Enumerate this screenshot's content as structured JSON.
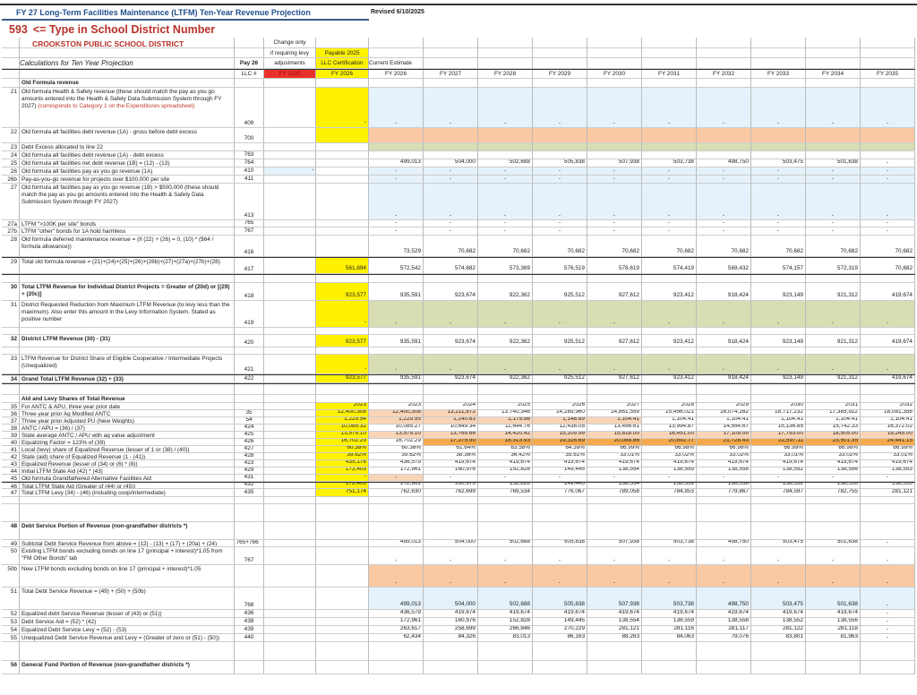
{
  "header": {
    "title": "FY 27 Long-Term Facilities Maintenance (LTFM) Ten-Year Revenue Projection",
    "revised": "Revised 6/10/2025",
    "district_number": "593",
    "district_prompt": "<= Type in School District Number",
    "district_name": "CROOKSTON PUBLIC SCHOOL DISTRICT",
    "calc_title": "Calculations for Ten Year Projection",
    "change_only": [
      "Change only",
      "if requiring levy",
      "adjustments"
    ],
    "payable": [
      "Payable 2025",
      "LLC Certification"
    ],
    "current_estimate": "Current Estimate",
    "pay26": "Pay 26",
    "llc_header": "LLC #",
    "fy2025": "FY 2025",
    "fy2026_llc": "FY 2026",
    "years": [
      "FY 2026",
      "FY 2027",
      "FY 2028",
      "FY 2029",
      "FY 2030",
      "FY 2031",
      "FY 2032",
      "FY 2033",
      "FY 2034",
      "FY 2035"
    ]
  },
  "colors": {
    "title": "#1f4e8c",
    "district": "#b8322a",
    "llc_highlight": "#fff200",
    "fy2025_header": "#e8312a",
    "input_blue": "#e5f2fb",
    "orange": "#f9c9a3",
    "green": "#d9ddb4"
  },
  "rows": [
    {
      "label": "Old Formula revenue",
      "section": true
    },
    {
      "num": "21",
      "label": "Old formula Health & Safety revenue (these should match the pay as you go amounts entered into the Health & Safety Data Submission System through FY 2027)",
      "note": "(corresponds to Category 1 on the Expenditures spreadsheet)",
      "llc": "409",
      "fy2026": "-",
      "values": [
        "-",
        "-",
        "-",
        "-",
        "-",
        "-",
        "-",
        "-",
        "-",
        "-"
      ]
    },
    {
      "num": "22",
      "label": "Old formula alt facilities debt revenue (1A) - gross before debt excess",
      "llc": "700",
      "values": [
        "",
        "",
        "",
        "",
        "",
        "",
        "",
        "",
        "",
        ""
      ]
    },
    {
      "num": "23",
      "label": "Debt Excess allocated to line 22",
      "values": [
        "",
        "",
        "",
        "",
        "",
        "",
        "",
        "",
        "",
        ""
      ]
    },
    {
      "num": "24",
      "label": "Old formula alt facilities debt revenue (1A) -  debt excess",
      "llc": "763",
      "values": [
        "",
        "",
        "",
        "",
        "",
        "",
        "",
        "",
        "",
        ""
      ]
    },
    {
      "num": "25",
      "label": "Old formula alt facilities net debt revenue (1B) = (12) - (13)",
      "llc": "764",
      "values": [
        "499,013",
        "504,000",
        "502,688",
        "505,838",
        "507,938",
        "503,738",
        "498,750",
        "503,475",
        "501,638",
        "-"
      ]
    },
    {
      "num": "26",
      "label": "Old formula alt facilities pay as you go revenue (1A)",
      "llc": "410",
      "fy2025": "-",
      "values": [
        "-",
        "-",
        "-",
        "-",
        "-",
        "-",
        "-",
        "-",
        "-",
        "-"
      ]
    },
    {
      "num": "26b",
      "label": "Pay-as-you-go revenue for projects over $100,000 per site",
      "llc": "411",
      "values": [
        "-",
        "-",
        "-",
        "-",
        "-",
        "-",
        "-",
        "-",
        "-",
        "-"
      ]
    },
    {
      "num": "27",
      "label": "Old formula alt facilities pay as you go revenue (1B) > $500,000 (these should match the pay as you go amounts entered into the Health & Safety Data Submission System through FY 2027)",
      "llc": "413",
      "values": [
        "-",
        "-",
        "-",
        "-",
        "-",
        "-",
        "-",
        "-",
        "-",
        "-"
      ]
    },
    {
      "num": "27a",
      "label": "LTFM \">100K per site\" bonds",
      "llc": "765",
      "values": [
        "-",
        "-",
        "-",
        "-",
        "-",
        "-",
        "-",
        "-",
        "-",
        "-"
      ]
    },
    {
      "num": "27b",
      "label": "LTFM \"other\" bonds for 1A hold harmless",
      "llc": "767",
      "values": [
        "-",
        "-",
        "-",
        "-",
        "-",
        "-",
        "-",
        "-",
        "-",
        "-"
      ]
    },
    {
      "num": "28",
      "label": "Old formula deferred maintenance revenue = (if (22) + (26) = 0, (10) * ($64 / formula allowance))",
      "llc": "416",
      "values": [
        "73,529",
        "70,682",
        "70,682",
        "70,682",
        "70,682",
        "70,682",
        "70,682",
        "70,682",
        "70,682",
        "70,682"
      ]
    },
    {
      "num": "29",
      "label": "Total old formula revenue = (21)+(24)+(25)+(26)+(26b)+(27)+(27a)+(27b)+(28)",
      "llc": "417",
      "fy2026": "561,694",
      "values": [
        "572,542",
        "574,682",
        "573,369",
        "576,519",
        "578,619",
        "574,419",
        "569,432",
        "574,157",
        "572,319",
        "70,682"
      ]
    },
    {
      "blank": true
    },
    {
      "num": "30",
      "label": "Total LTFM Revenue for Individual District Projects = Greater of (20d) or [(29) + (20c)]",
      "bold": true,
      "llc": "418",
      "fy2026": "923,577",
      "values": [
        "935,591",
        "923,674",
        "922,362",
        "925,512",
        "927,612",
        "923,412",
        "918,424",
        "923,149",
        "921,312",
        "419,674"
      ]
    },
    {
      "num": "31",
      "label": "District Requested Reduction from Maximum LTFM Revenue (to levy less than the maximum).  Also enter this amount in the Levy Information System.  Stated as positive number",
      "llc": "419",
      "fy2026": "-",
      "values": [
        "-",
        "-",
        "-",
        "-",
        "-",
        "-",
        "-",
        "-",
        "-",
        "-"
      ]
    },
    {
      "blank": true
    },
    {
      "num": "32",
      "label": "District LTFM Revenue  (30) - (31)",
      "bold": true,
      "llc": "420",
      "fy2026": "923,577",
      "values": [
        "935,591",
        "923,674",
        "922,362",
        "925,512",
        "927,612",
        "923,412",
        "918,424",
        "923,149",
        "921,312",
        "419,674"
      ]
    },
    {
      "blank": true
    },
    {
      "num": "33",
      "label": "LTFM Revenue for District Share of Eligible Cooperative / Intermediate Projects (Unequalized)",
      "llc": "421",
      "fy2026": "-",
      "values": [
        "-",
        "-",
        "-",
        "-",
        "-",
        "-",
        "-",
        "-",
        "-",
        "-"
      ]
    },
    {
      "num": "34",
      "label": "Grand Total LTFM Revenue (32) + (33)",
      "bold": true,
      "llc": "422",
      "fy2026": "923,577",
      "values": [
        "935,591",
        "923,674",
        "922,362",
        "925,512",
        "927,612",
        "923,412",
        "918,424",
        "923,149",
        "921,312",
        "419,674"
      ]
    },
    {
      "blank": true
    },
    {
      "label": "Aid and Levy Shares of Total Revenue",
      "section": true
    },
    {
      "num": "35",
      "label": "For ANTC & APU, three year prior date",
      "fy2026": "2023",
      "values": [
        "2023",
        "2024",
        "2025",
        "2026",
        "2027",
        "2028",
        "2029",
        "2030",
        "2031",
        "2032"
      ]
    },
    {
      "num": "36",
      "label": "Three year prior Ag Modified ANTC",
      "llc": "35",
      "fy2026": "12,400,308",
      "values": [
        "12,400,308",
        "13,211,872",
        "13,740,346",
        "14,289,960",
        "14,861,559",
        "15,456,021",
        "16,074,262",
        "16,717,232",
        "17,385,922",
        "18,081,358"
      ]
    },
    {
      "num": "37",
      "label": "Three year prior Adjusted PU (New Weights)",
      "llc": "54",
      "fy2026": "1,229.54",
      "values": [
        "1,229.55",
        "1,240.63",
        "1,179.96",
        "1,148.89",
        "1,104.41",
        "1,104.41",
        "1,104.41",
        "1,104.41",
        "1,104.41",
        "1,104.41"
      ]
    },
    {
      "num": "38",
      "label": "ANTC / APU = (36) / (37)",
      "llc": "424",
      "fy2026": "10,085.32",
      "values": [
        "10,085.27",
        "10,649.34",
        "11,644.76",
        "12,438.05",
        "13,456.61",
        "13,994.87",
        "14,554.67",
        "15,136.85",
        "15,742.33",
        "16,372.02"
      ]
    },
    {
      "num": "39",
      "label": "State average ANTC / APU with ag value adjustment",
      "llc": "425",
      "fy2026": "13,579.10",
      "values": [
        "13,579.10",
        "13,765.66",
        "14,420.42",
        "15,209.99",
        "15,818.00",
        "16,451.00",
        "17,109.00",
        "17,793.00",
        "18,505.00",
        "19,245.00"
      ]
    },
    {
      "num": "40",
      "label": "Equalizing Factor = 123% of (39)",
      "llc": "426",
      "fy2026": "16,702.29",
      "values": [
        "16,702.29",
        "17,275.90",
        "18,313.93",
        "19,316.69",
        "20,088.86",
        "20,892.77",
        "21,728.43",
        "22,597.11",
        "23,501.35",
        "24,441.15"
      ]
    },
    {
      "num": "41",
      "label": "Local (levy) share of Equalized Revenue (lesser of 1 or (38) / (40))",
      "llc": "427",
      "fy2026": "60.38%",
      "values": [
        "60.38%",
        "61.64%",
        "63.58%",
        "64.39%",
        "66.99%",
        "66.98%",
        "66.98%",
        "66.99%",
        "66.98%",
        "66.99%"
      ]
    },
    {
      "num": "42",
      "label": "State (aid) share of Equalized Revenue (1 - (41))",
      "llc": "428",
      "fy2026": "39.62%",
      "values": [
        "39.62%",
        "38.36%",
        "36.42%",
        "35.61%",
        "33.01%",
        "33.02%",
        "33.02%",
        "33.01%",
        "33.02%",
        "33.01%"
      ]
    },
    {
      "num": "43",
      "label": "Equalized Revenue  (lesser of (34) or (6) * (8))",
      "llc": "423",
      "fy2026": "435,176",
      "values": [
        "436,579",
        "419,674",
        "419,674",
        "419,674",
        "419,674",
        "419,674",
        "419,674",
        "419,674",
        "419,674",
        "419,674"
      ]
    },
    {
      "num": "44",
      "label": " Initial  LTFM State Aid (42) * (43)",
      "llc": "429",
      "fy2026": "172,403",
      "values": [
        "172,961",
        "160,976",
        "152,828",
        "149,445",
        "138,554",
        "138,559",
        "138,558",
        "138,552",
        "138,556",
        "138,553"
      ]
    },
    {
      "num": "45",
      "label": " Old formula Grandfathered Alternative Facilities Aid",
      "llc": "431",
      "fy2026": "-",
      "values": [
        "-",
        "-",
        "-",
        "-",
        "-",
        "-",
        "-",
        "-",
        "-",
        "-"
      ]
    },
    {
      "num": "46",
      "label": " Total LTFM State Aid (Greater of (44) or (45))",
      "llc": "432",
      "fy2026": "172,403",
      "values": [
        "172,961",
        "160,976",
        "152,828",
        "149,445",
        "138,554",
        "138,559",
        "138,558",
        "138,552",
        "138,556",
        "138,553"
      ]
    },
    {
      "num": "47",
      "label": "Total LTFM Levy  (34) - (46)   (including coop/intermediate)",
      "llc": "435",
      "fy2026": "751,174",
      "values": [
        "762,630",
        "762,699",
        "769,534",
        "776,067",
        "789,058",
        "784,853",
        "779,867",
        "784,597",
        "782,755",
        "281,121"
      ]
    },
    {
      "blank": true
    },
    {
      "blank": true
    },
    {
      "num": "48",
      "label": "Debt Service Portion of Revenue  (non-grandfather districts *)",
      "bold": true
    },
    {
      "num": "49",
      "label": "Subtotal Debt Service Revenue from above = (12) - (13) + (17) + (20a) + (24)",
      "llc": "763+764+ 765+766",
      "values": [
        "499,013",
        "504,000",
        "502,688",
        "505,838",
        "507,938",
        "503,738",
        "498,750",
        "503,475",
        "501,638",
        "-"
      ]
    },
    {
      "num": "50",
      "label": "Existing LTFM bonds excluding bonds on line 17   (principal + interest)*1.05  from \"FM Other Bonds\" tab",
      "llc": "767",
      "values": [
        "-",
        "-",
        "-",
        "-",
        "-",
        "-",
        "-",
        "-",
        "-",
        "-"
      ]
    },
    {
      "num": "50b",
      "label": "New LTFM bonds excluding bonds on line 17   (principal + interest)*1.05",
      "values": [
        "-",
        "-",
        "-",
        "-",
        "-",
        "-",
        "-",
        "-",
        "-",
        "-"
      ]
    },
    {
      "num": "51",
      "label": "Total Debt Service Revenue = (49) + (50) + (50b)",
      "llc": "768",
      "values": [
        "499,013",
        "504,000",
        "502,688",
        "505,838",
        "507,938",
        "503,738",
        "498,750",
        "503,475",
        "501,638",
        "-"
      ]
    },
    {
      "num": "52",
      "label": "Equalized debt Service Revenue (lesser of (43) or (51))",
      "llc": "436",
      "values": [
        "436,579",
        "419,674",
        "419,674",
        "419,674",
        "419,674",
        "419,674",
        "419,674",
        "419,674",
        "419,674",
        "-"
      ]
    },
    {
      "num": "53",
      "label": "Debt Service Aid = (52) * (42)",
      "llc": "438",
      "values": [
        "172,961",
        "160,976",
        "152,828",
        "149,445",
        "138,554",
        "138,559",
        "138,558",
        "138,552",
        "138,556",
        "-"
      ]
    },
    {
      "num": "54",
      "label": "Equalized Debt Service Levy  = (52) - (53)",
      "llc": "439",
      "values": [
        "263,617",
        "258,699",
        "266,846",
        "270,229",
        "281,121",
        "281,116",
        "281,117",
        "281,122",
        "281,118",
        "-"
      ]
    },
    {
      "num": "55",
      "label": "Unequalized Debt Service Revenue and Levy = (Greater of zero or (51) - (50))",
      "llc": "440",
      "values": [
        "62,434",
        "84,326",
        "83,013",
        "86,163",
        "88,263",
        "84,063",
        "79,076",
        "83,801",
        "81,963",
        "-"
      ]
    },
    {
      "blank": true
    },
    {
      "num": "56",
      "label": "General Fund Portion of Revenue (non-grandfather districts *)",
      "bold": true
    }
  ]
}
